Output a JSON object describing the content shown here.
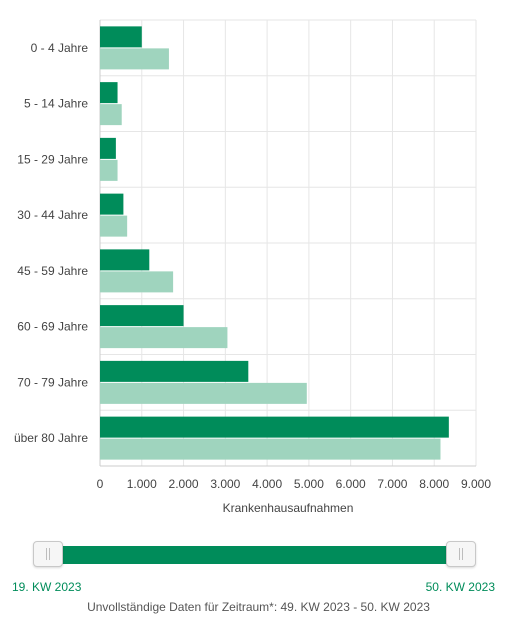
{
  "chart_data": {
    "type": "bar",
    "orientation": "horizontal",
    "categories": [
      "0 - 4 Jahre",
      "5 - 14 Jahre",
      "15 - 29 Jahre",
      "30 - 44 Jahre",
      "45 - 59 Jahre",
      "60 - 69 Jahre",
      "70 - 79 Jahre",
      "über 80 Jahre"
    ],
    "series": [
      {
        "color": "#008c5a",
        "values": [
          1000,
          420,
          380,
          560,
          1180,
          2000,
          3550,
          8350
        ]
      },
      {
        "color": "#9fd4be",
        "values": [
          1650,
          520,
          420,
          650,
          1750,
          3050,
          4950,
          8150
        ]
      }
    ],
    "xlabel": "Krankenhausaufnahmen",
    "xlim": [
      0,
      9000
    ],
    "x_ticks": [
      0,
      1000,
      2000,
      3000,
      4000,
      5000,
      6000,
      7000,
      8000,
      9000
    ],
    "x_tick_labels": [
      "0",
      "1.000",
      "2.000",
      "3.000",
      "4.000",
      "5.000",
      "6.000",
      "7.000",
      "8.000",
      "9.000"
    ],
    "grid": true
  },
  "slider": {
    "start_label": "19. KW 2023",
    "end_label": "50. KW 2023",
    "fill_color": "#008c5a"
  },
  "note": "Unvollständige Daten für Zeitraum*: 49. KW 2023 - 50. KW 2023"
}
